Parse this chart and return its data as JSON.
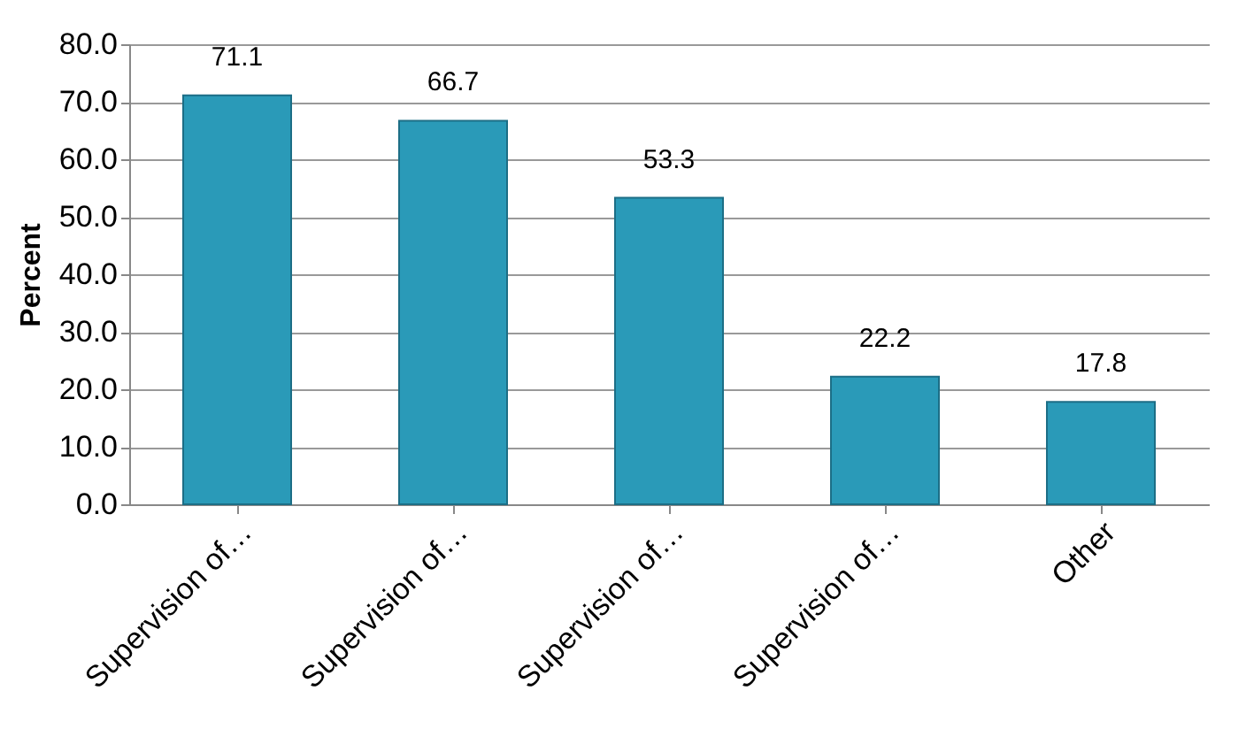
{
  "chart_data": {
    "type": "bar",
    "ylabel": "Percent",
    "categories": [
      "Supervision of…",
      "Supervision of…",
      "Supervision of…",
      "Supervision of…",
      "Other"
    ],
    "values": [
      71.1,
      66.7,
      53.3,
      22.2,
      17.8
    ],
    "color": "#2a9ab8",
    "ylim": [
      0,
      80
    ],
    "yticks": [
      {
        "value": 0,
        "label": "0.0"
      },
      {
        "value": 10,
        "label": "10.0"
      },
      {
        "value": 20,
        "label": "20.0"
      },
      {
        "value": 30,
        "label": "30.0"
      },
      {
        "value": 40,
        "label": "40.0"
      },
      {
        "value": 50,
        "label": "50.0"
      },
      {
        "value": 60,
        "label": "60.0"
      },
      {
        "value": 70,
        "label": "70.0"
      },
      {
        "value": 80,
        "label": "80.0"
      }
    ],
    "grid": true,
    "data_labels": true
  }
}
